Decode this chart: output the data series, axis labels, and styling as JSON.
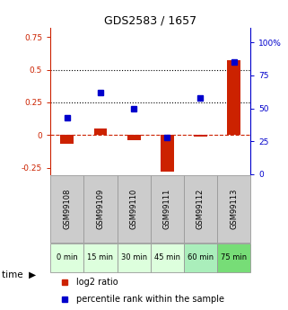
{
  "title": "GDS2583 / 1657",
  "samples": [
    "GSM99108",
    "GSM99109",
    "GSM99110",
    "GSM99111",
    "GSM99112",
    "GSM99113"
  ],
  "time_labels": [
    "0 min",
    "15 min",
    "30 min",
    "45 min",
    "60 min",
    "75 min"
  ],
  "time_colors": [
    "#ddffdd",
    "#ddffdd",
    "#ddffdd",
    "#ddffdd",
    "#aaeebb",
    "#77dd77"
  ],
  "log2_ratio": [
    -0.07,
    0.05,
    -0.04,
    -0.28,
    -0.01,
    0.57
  ],
  "percentile_rank": [
    43,
    62,
    50,
    28,
    58,
    85
  ],
  "log2_color": "#cc2200",
  "percentile_color": "#0000cc",
  "ylim_left": [
    -0.3,
    0.82
  ],
  "ylim_right": [
    0,
    110.93
  ],
  "yticks_left": [
    -0.25,
    0.0,
    0.25,
    0.5,
    0.75
  ],
  "yticks_right": [
    0,
    25,
    50,
    75,
    100
  ],
  "ytick_labels_left": [
    "-0.25",
    "0",
    "0.25",
    "0.5",
    "0.75"
  ],
  "ytick_labels_right": [
    "0",
    "25",
    "50",
    "75",
    "100%"
  ],
  "hlines": [
    0.5,
    0.25
  ],
  "zero_line_y": 0.0,
  "bar_width": 0.4,
  "sample_label_bg": "#cccccc",
  "sample_label_border": "#999999"
}
